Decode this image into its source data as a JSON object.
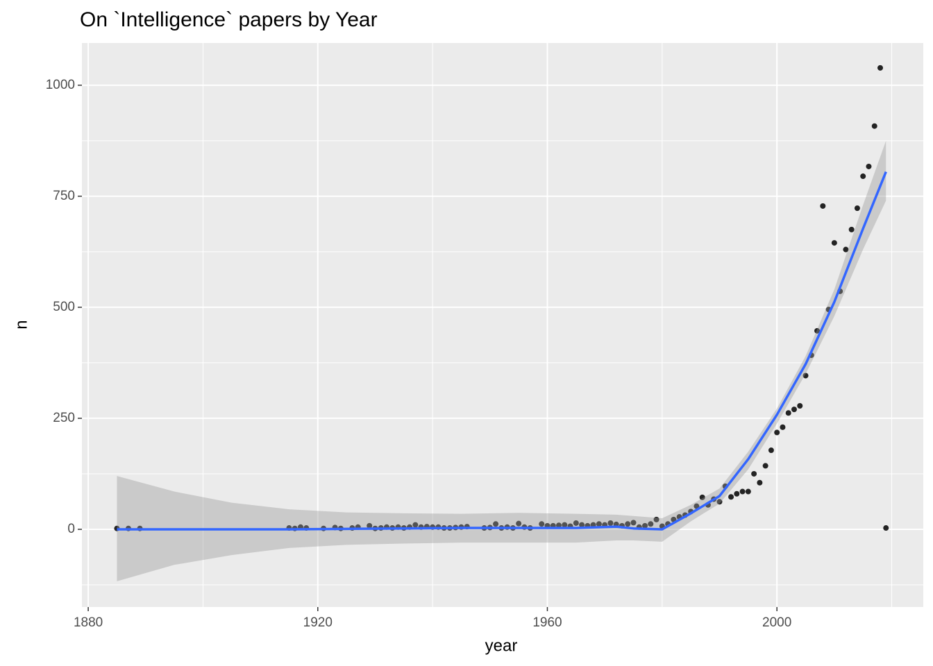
{
  "chart_data": {
    "type": "scatter",
    "title": "On `Intelligence` papers by Year",
    "x_label": "year",
    "y_label": "n",
    "x": [
      1885,
      1887,
      1889,
      1915,
      1916,
      1917,
      1918,
      1921,
      1923,
      1924,
      1926,
      1927,
      1929,
      1930,
      1931,
      1932,
      1933,
      1934,
      1935,
      1936,
      1937,
      1938,
      1939,
      1940,
      1941,
      1942,
      1943,
      1944,
      1945,
      1946,
      1949,
      1950,
      1951,
      1952,
      1953,
      1954,
      1955,
      1956,
      1957,
      1959,
      1960,
      1961,
      1962,
      1963,
      1964,
      1965,
      1966,
      1967,
      1968,
      1969,
      1970,
      1971,
      1972,
      1973,
      1974,
      1975,
      1976,
      1977,
      1978,
      1979,
      1980,
      1981,
      1982,
      1983,
      1984,
      1985,
      1986,
      1987,
      1988,
      1989,
      1990,
      1991,
      1992,
      1993,
      1994,
      1995,
      1996,
      1997,
      1998,
      1999,
      2000,
      2001,
      2002,
      2003,
      2004,
      2005,
      2006,
      2007,
      2008,
      2009,
      2010,
      2011,
      2012,
      2013,
      2014,
      2015,
      2016,
      2017,
      2018,
      2019
    ],
    "y": [
      2,
      2,
      2,
      3,
      2,
      5,
      3,
      2,
      4,
      2,
      3,
      5,
      8,
      2,
      3,
      5,
      3,
      5,
      3,
      5,
      10,
      5,
      6,
      5,
      5,
      3,
      3,
      4,
      5,
      6,
      3,
      4,
      12,
      3,
      5,
      3,
      13,
      5,
      3,
      12,
      8,
      8,
      9,
      10,
      7,
      14,
      10,
      8,
      10,
      12,
      10,
      14,
      11,
      8,
      12,
      15,
      5,
      8,
      12,
      22,
      7,
      12,
      22,
      28,
      32,
      40,
      52,
      72,
      55,
      68,
      62,
      97,
      73,
      80,
      85,
      85,
      125,
      105,
      143,
      178,
      218,
      230,
      262,
      270,
      278,
      346,
      392,
      447,
      728,
      495,
      645,
      536,
      630,
      675,
      723,
      795,
      817,
      908,
      1039,
      3
    ],
    "point_color": "#000000",
    "smooth": {
      "color": "#3366ff",
      "band_color": "#999999",
      "x": [
        1885,
        1895,
        1905,
        1915,
        1925,
        1935,
        1945,
        1955,
        1965,
        1972,
        1975,
        1980,
        1985,
        1990,
        1995,
        2000,
        2005,
        2010,
        2015,
        2019
      ],
      "values": [
        0,
        0,
        0,
        0,
        1,
        2,
        3,
        3,
        3,
        6,
        2,
        0,
        36,
        75,
        158,
        258,
        372,
        512,
        677,
        805
      ],
      "lower": [
        -117,
        -80,
        -58,
        -42,
        -35,
        -32,
        -30,
        -30,
        -30,
        -25,
        -25,
        -28,
        18,
        58,
        135,
        238,
        350,
        480,
        630,
        740
      ],
      "upper": [
        120,
        85,
        60,
        45,
        38,
        36,
        35,
        37,
        35,
        33,
        30,
        25,
        55,
        92,
        175,
        272,
        390,
        540,
        730,
        875
      ]
    },
    "xlim": [
      1878.9,
      2025.5
    ],
    "ylim": [
      -175,
      1095
    ],
    "xticks": [
      1880,
      1920,
      1960,
      2000
    ],
    "yticks": [
      0,
      250,
      500,
      750,
      1000
    ],
    "grid": true,
    "minor_grid": true
  }
}
